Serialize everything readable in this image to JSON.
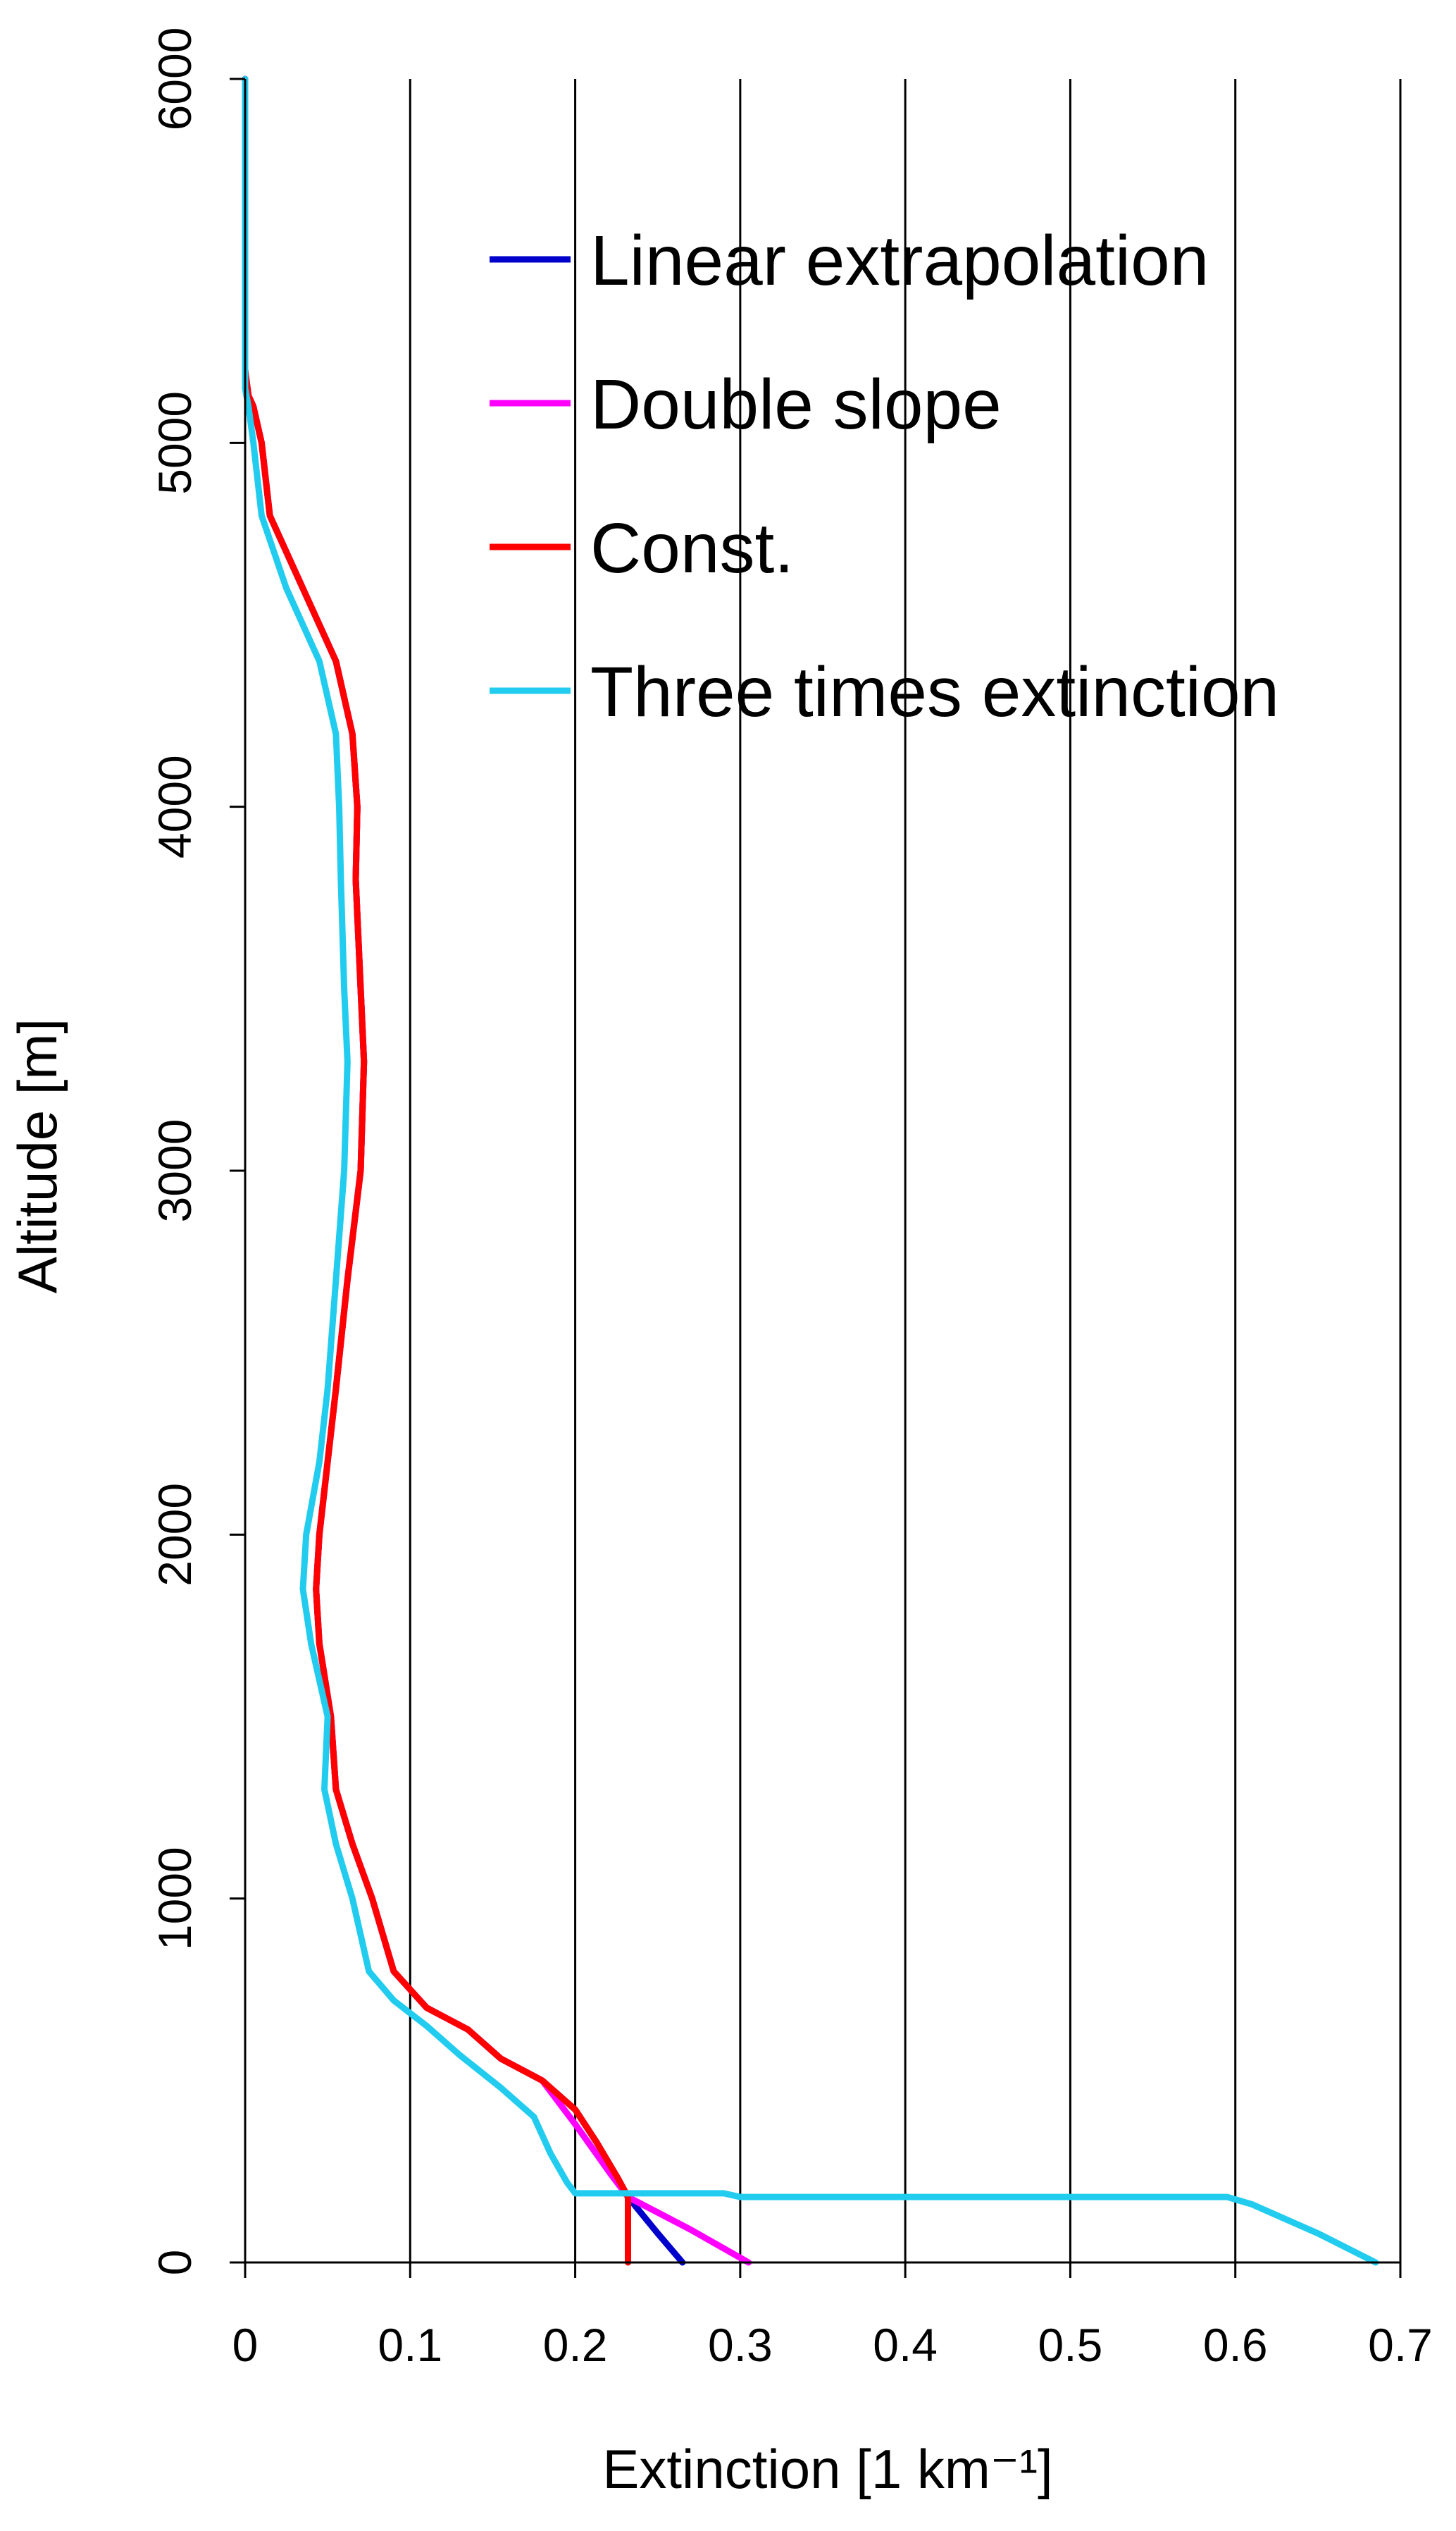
{
  "chart_data": {
    "type": "line",
    "title": "",
    "xlabel": "Extinction [1 km⁻¹]",
    "ylabel": "Altitude [m]",
    "xlim": [
      0,
      0.7
    ],
    "ylim": [
      0,
      6000
    ],
    "x_ticks": [
      "0",
      "0.1",
      "0.2",
      "0.3",
      "0.4",
      "0.5",
      "0.6",
      "0.7"
    ],
    "y_ticks": [
      "0",
      "1000",
      "2000",
      "3000",
      "4000",
      "5000",
      "6000"
    ],
    "grid": "vertical",
    "legend_position": "top-right",
    "series": [
      {
        "name": "Linear extrapolation",
        "color": "#0000cc",
        "points": [
          [
            0.265,
            0
          ],
          [
            0.25,
            80
          ],
          [
            0.232,
            180
          ],
          [
            0.226,
            230
          ],
          [
            0.213,
            330
          ],
          [
            0.2,
            420
          ],
          [
            0.18,
            500
          ],
          [
            0.155,
            560
          ],
          [
            0.135,
            640
          ],
          [
            0.11,
            700
          ],
          [
            0.09,
            800
          ],
          [
            0.077,
            1000
          ],
          [
            0.065,
            1150
          ],
          [
            0.055,
            1300
          ],
          [
            0.052,
            1500
          ],
          [
            0.045,
            1700
          ],
          [
            0.043,
            1850
          ],
          [
            0.045,
            2000
          ],
          [
            0.05,
            2200
          ],
          [
            0.055,
            2400
          ],
          [
            0.062,
            2700
          ],
          [
            0.07,
            3000
          ],
          [
            0.072,
            3300
          ],
          [
            0.07,
            3500
          ],
          [
            0.067,
            3800
          ],
          [
            0.068,
            4000
          ],
          [
            0.065,
            4200
          ],
          [
            0.055,
            4400
          ],
          [
            0.035,
            4600
          ],
          [
            0.015,
            4800
          ],
          [
            0.01,
            5000
          ],
          [
            0.005,
            5100
          ],
          [
            0.002,
            5130
          ],
          [
            0,
            5200
          ],
          [
            0,
            6000
          ]
        ]
      },
      {
        "name": "Double slope",
        "color": "#ff00ff",
        "points": [
          [
            0.305,
            0
          ],
          [
            0.27,
            90
          ],
          [
            0.232,
            180
          ],
          [
            0.222,
            240
          ],
          [
            0.2,
            380
          ],
          [
            0.18,
            500
          ],
          [
            0.155,
            560
          ],
          [
            0.135,
            640
          ],
          [
            0.11,
            700
          ],
          [
            0.09,
            800
          ],
          [
            0.077,
            1000
          ],
          [
            0.065,
            1150
          ],
          [
            0.055,
            1300
          ],
          [
            0.052,
            1500
          ],
          [
            0.045,
            1700
          ],
          [
            0.043,
            1850
          ],
          [
            0.045,
            2000
          ],
          [
            0.05,
            2200
          ],
          [
            0.055,
            2400
          ],
          [
            0.062,
            2700
          ],
          [
            0.07,
            3000
          ],
          [
            0.072,
            3300
          ],
          [
            0.07,
            3500
          ],
          [
            0.067,
            3800
          ],
          [
            0.068,
            4000
          ],
          [
            0.065,
            4200
          ],
          [
            0.055,
            4400
          ],
          [
            0.035,
            4600
          ],
          [
            0.015,
            4800
          ],
          [
            0.01,
            5000
          ],
          [
            0.005,
            5100
          ],
          [
            0.002,
            5130
          ],
          [
            0,
            5200
          ],
          [
            0,
            6000
          ]
        ]
      },
      {
        "name": "Const.",
        "color": "#ff0000",
        "points": [
          [
            0.232,
            0
          ],
          [
            0.232,
            180
          ],
          [
            0.226,
            230
          ],
          [
            0.213,
            330
          ],
          [
            0.2,
            420
          ],
          [
            0.18,
            500
          ],
          [
            0.155,
            560
          ],
          [
            0.135,
            640
          ],
          [
            0.11,
            700
          ],
          [
            0.09,
            800
          ],
          [
            0.077,
            1000
          ],
          [
            0.065,
            1150
          ],
          [
            0.055,
            1300
          ],
          [
            0.052,
            1500
          ],
          [
            0.045,
            1700
          ],
          [
            0.043,
            1850
          ],
          [
            0.045,
            2000
          ],
          [
            0.05,
            2200
          ],
          [
            0.055,
            2400
          ],
          [
            0.062,
            2700
          ],
          [
            0.07,
            3000
          ],
          [
            0.072,
            3300
          ],
          [
            0.07,
            3500
          ],
          [
            0.067,
            3800
          ],
          [
            0.068,
            4000
          ],
          [
            0.065,
            4200
          ],
          [
            0.055,
            4400
          ],
          [
            0.035,
            4600
          ],
          [
            0.015,
            4800
          ],
          [
            0.01,
            5000
          ],
          [
            0.005,
            5100
          ],
          [
            0.002,
            5130
          ],
          [
            0,
            5200
          ],
          [
            0,
            6000
          ]
        ]
      },
      {
        "name": "Three times extinction",
        "color": "#22ccee",
        "points": [
          [
            0.685,
            0
          ],
          [
            0.65,
            80
          ],
          [
            0.61,
            160
          ],
          [
            0.595,
            180
          ],
          [
            0.5,
            180
          ],
          [
            0.3,
            180
          ],
          [
            0.29,
            190
          ],
          [
            0.2,
            190
          ],
          [
            0.195,
            220
          ],
          [
            0.185,
            300
          ],
          [
            0.175,
            400
          ],
          [
            0.155,
            480
          ],
          [
            0.13,
            570
          ],
          [
            0.11,
            650
          ],
          [
            0.09,
            720
          ],
          [
            0.075,
            800
          ],
          [
            0.065,
            1000
          ],
          [
            0.055,
            1150
          ],
          [
            0.048,
            1300
          ],
          [
            0.05,
            1500
          ],
          [
            0.04,
            1700
          ],
          [
            0.035,
            1850
          ],
          [
            0.037,
            2000
          ],
          [
            0.045,
            2200
          ],
          [
            0.05,
            2400
          ],
          [
            0.055,
            2700
          ],
          [
            0.06,
            3000
          ],
          [
            0.062,
            3300
          ],
          [
            0.06,
            3500
          ],
          [
            0.058,
            3800
          ],
          [
            0.057,
            4000
          ],
          [
            0.055,
            4200
          ],
          [
            0.045,
            4400
          ],
          [
            0.025,
            4600
          ],
          [
            0.01,
            4800
          ],
          [
            0.005,
            5000
          ],
          [
            0.002,
            5100
          ],
          [
            0,
            5150
          ],
          [
            0,
            6000
          ]
        ]
      }
    ]
  }
}
